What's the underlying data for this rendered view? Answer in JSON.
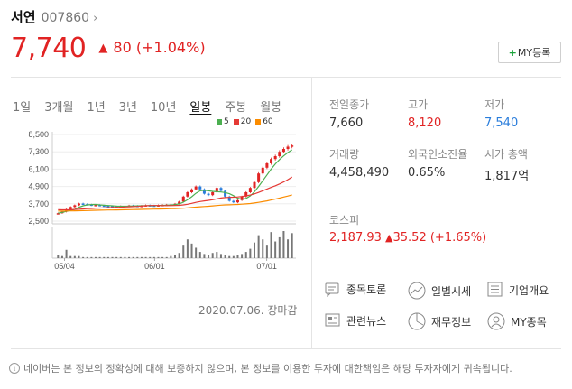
{
  "header": {
    "name": "서연",
    "code": "007860",
    "chevron": "›"
  },
  "price": {
    "current": "7,740",
    "arrow": "▲",
    "change": "80 (+1.04%)",
    "color": "#e12323"
  },
  "my_button": {
    "plus": "+",
    "label": "MY등록"
  },
  "tabs": [
    {
      "label": "1일",
      "active": false
    },
    {
      "label": "3개월",
      "active": false
    },
    {
      "label": "1년",
      "active": false
    },
    {
      "label": "3년",
      "active": false
    },
    {
      "label": "10년",
      "active": false
    },
    {
      "label": "일봉",
      "active": true
    },
    {
      "label": "주봉",
      "active": false
    },
    {
      "label": "월봉",
      "active": false
    }
  ],
  "legend": [
    {
      "label": "5",
      "color": "#4caf50"
    },
    {
      "label": "20",
      "color": "#e53935"
    },
    {
      "label": "60",
      "color": "#fb8c00"
    }
  ],
  "chart_data": {
    "type": "candlestick",
    "y_ticks": [
      "8,500",
      "7,300",
      "6,100",
      "4,900",
      "3,700",
      "2,500"
    ],
    "y_tick_values": [
      8500,
      7300,
      6100,
      4900,
      3700,
      2500
    ],
    "x_ticks": [
      "05/04",
      "06/01",
      "07/01"
    ],
    "close": [
      3050,
      3150,
      3320,
      3480,
      3600,
      3720,
      3680,
      3650,
      3600,
      3620,
      3580,
      3560,
      3540,
      3520,
      3500,
      3540,
      3560,
      3580,
      3560,
      3540,
      3560,
      3600,
      3580,
      3560,
      3600,
      3620,
      3640,
      3660,
      3700,
      3850,
      4200,
      4500,
      4700,
      4900,
      4700,
      4400,
      4300,
      4500,
      4800,
      4600,
      4200,
      3900,
      3800,
      3950,
      4200,
      4500,
      4800,
      5200,
      5800,
      6200,
      6500,
      6800,
      7000,
      7300,
      7500,
      7660,
      7740
    ],
    "ma5_color": "#4caf50",
    "ma20_color": "#e53935",
    "ma60_color": "#fb8c00",
    "volume": [
      3,
      2,
      8,
      2,
      2,
      2,
      1,
      1,
      1,
      1,
      1,
      1,
      1,
      1,
      1,
      1,
      1,
      1,
      1,
      1,
      1,
      1,
      1,
      1,
      1,
      1,
      1,
      2,
      3,
      5,
      12,
      18,
      14,
      10,
      6,
      4,
      3,
      5,
      6,
      4,
      3,
      2,
      2,
      3,
      4,
      6,
      9,
      15,
      22,
      18,
      12,
      25,
      16,
      20,
      26,
      18,
      24
    ]
  },
  "date_note": "2020.07.06. 장마감",
  "stats": [
    {
      "label": "전일종가",
      "value": "7,660",
      "color": "default"
    },
    {
      "label": "고가",
      "value": "8,120",
      "color": "red"
    },
    {
      "label": "저가",
      "value": "7,540",
      "color": "blue"
    },
    {
      "label": "거래량",
      "value": "4,458,490",
      "color": "default"
    },
    {
      "label": "외국인소진율",
      "value": "0.65%",
      "color": "default"
    },
    {
      "label": "시가 총액",
      "value": "1,817억",
      "color": "default"
    }
  ],
  "kospi": {
    "label": "코스피",
    "value": "2,187.93",
    "arrow": "▲",
    "change": "35.52 (+1.65%)"
  },
  "links": [
    {
      "label": "종목토론",
      "icon": "message-icon"
    },
    {
      "label": "일별시세",
      "icon": "trend-icon"
    },
    {
      "label": "기업개요",
      "icon": "list-icon"
    },
    {
      "label": "관련뉴스",
      "icon": "news-icon"
    },
    {
      "label": "재무정보",
      "icon": "pie-icon"
    },
    {
      "label": "MY종목",
      "icon": "person-icon"
    }
  ],
  "footer": {
    "icon": "i",
    "text": "네이버는 본 정보의 정확성에 대해 보증하지 않으며, 본 정보를 이용한 투자에 대한책임은 해당 투자자에게 귀속됩니다."
  }
}
